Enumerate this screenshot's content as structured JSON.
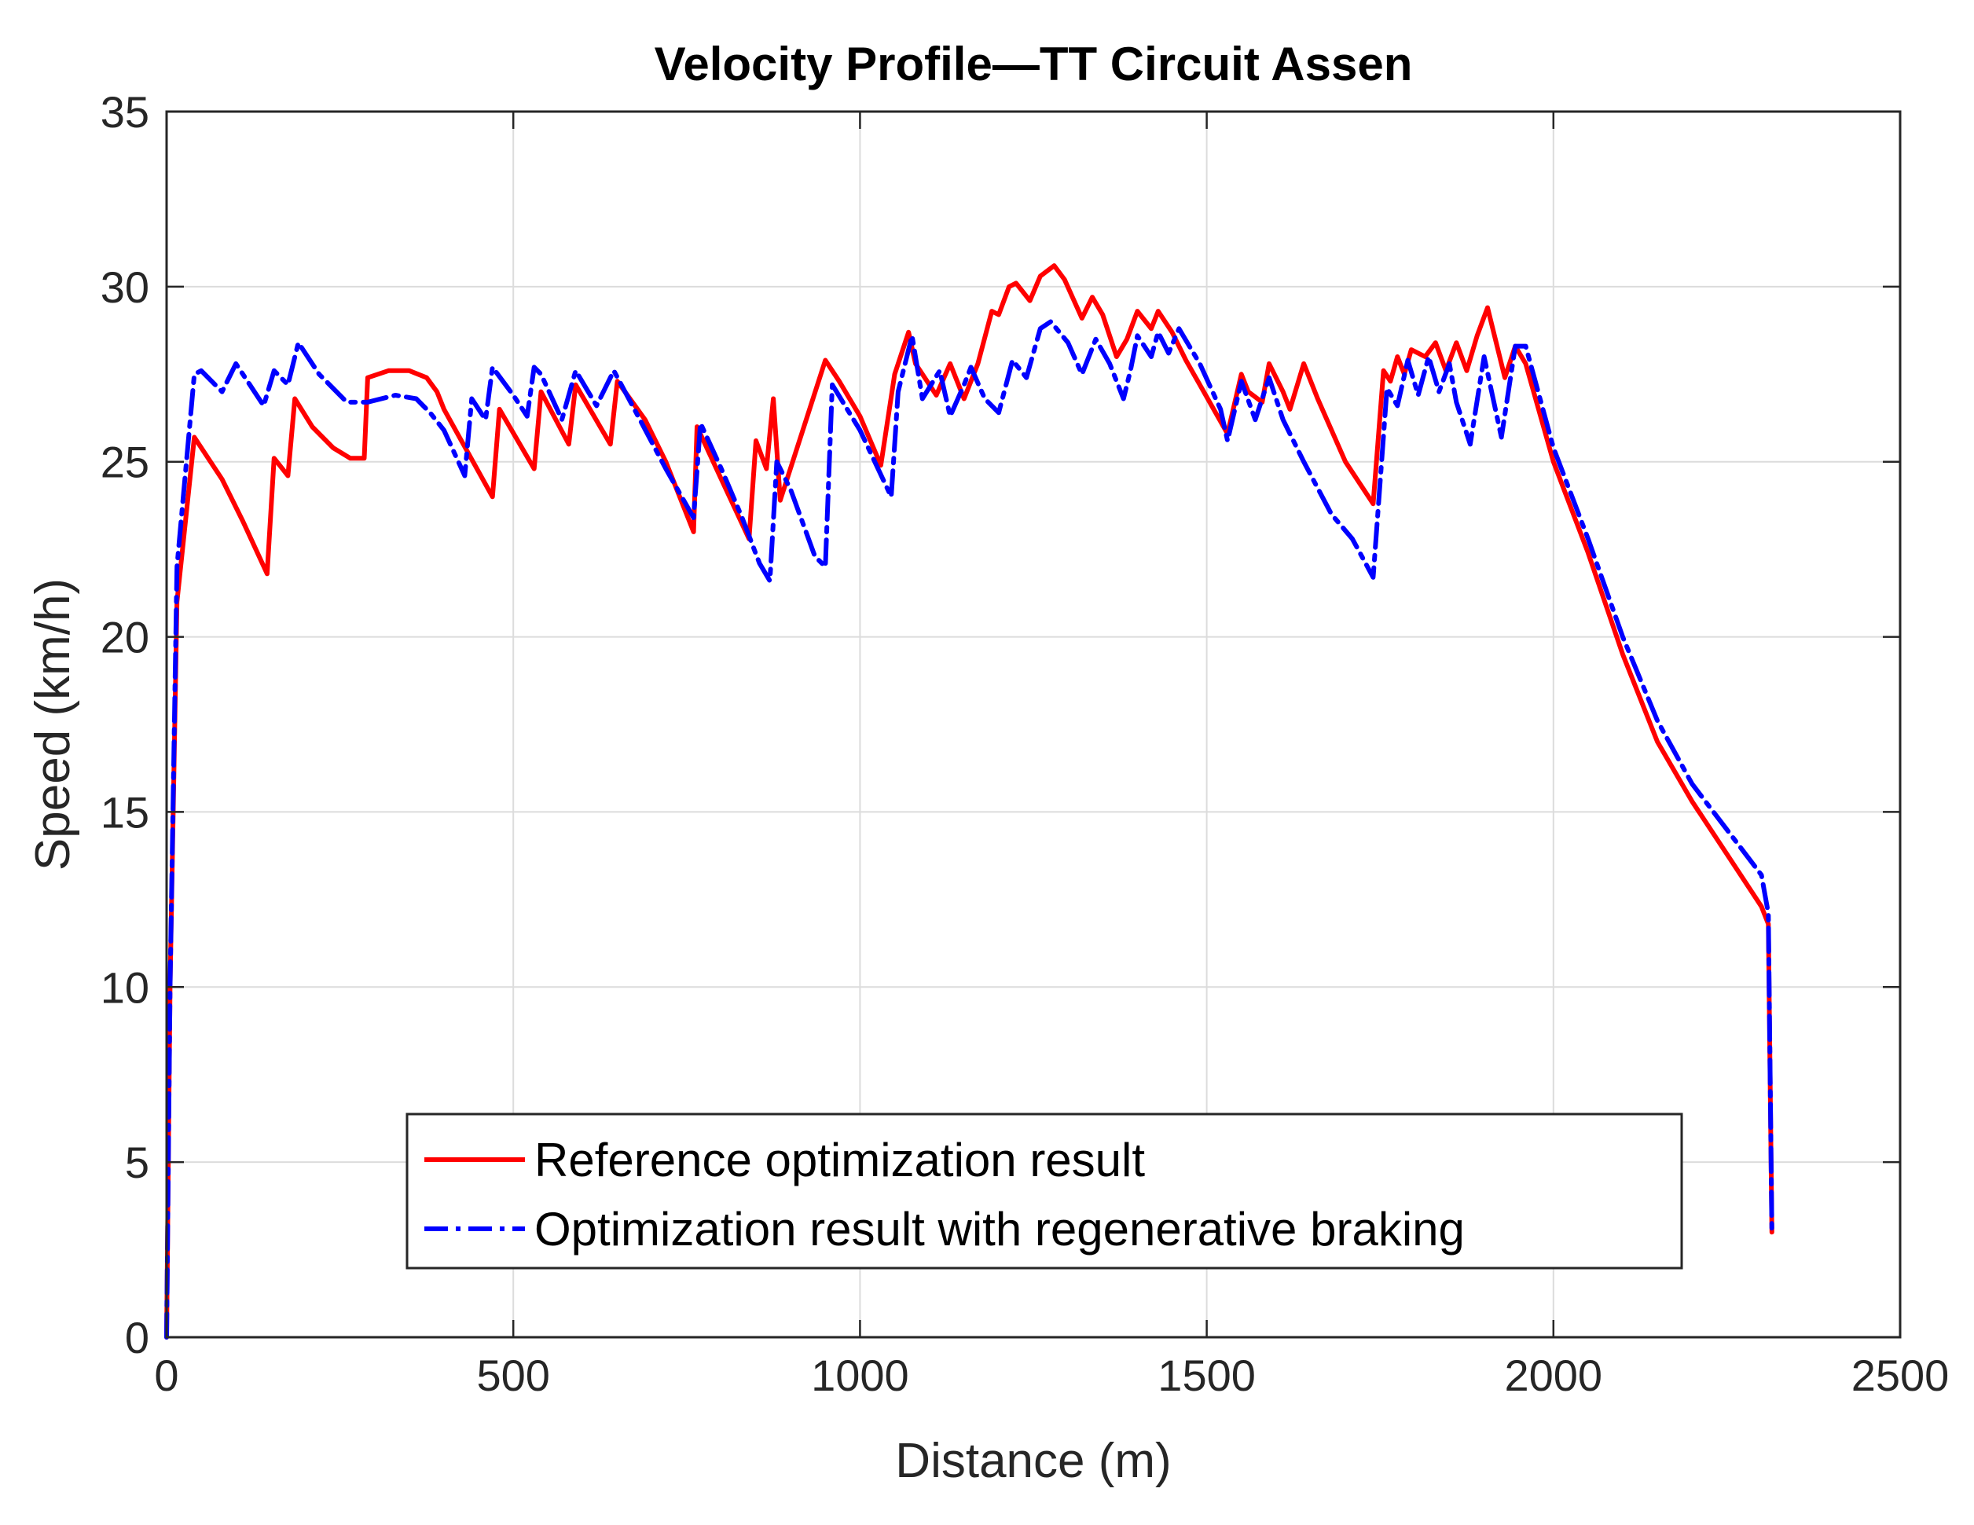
{
  "chart_data": {
    "type": "line",
    "title": "Velocity Profile—TT Circuit Assen",
    "xlabel": "Distance (m)",
    "ylabel": "Speed (km/h)",
    "xlim": [
      0,
      2500
    ],
    "ylim": [
      0,
      35
    ],
    "xticks": [
      0,
      500,
      1000,
      1500,
      2000,
      2500
    ],
    "yticks": [
      0,
      5,
      10,
      15,
      20,
      25,
      30,
      35
    ],
    "grid": true,
    "legend_position": "bottom-center",
    "series": [
      {
        "name": "Reference optimization result",
        "color": "#ff0000",
        "style": "solid",
        "x": [
          0,
          5,
          15,
          40,
          80,
          110,
          145,
          155,
          175,
          185,
          210,
          240,
          265,
          285,
          290,
          320,
          350,
          375,
          390,
          400,
          470,
          480,
          530,
          540,
          580,
          590,
          640,
          650,
          690,
          720,
          760,
          765,
          800,
          840,
          850,
          865,
          875,
          885,
          950,
          970,
          1000,
          1030,
          1050,
          1070,
          1080,
          1110,
          1130,
          1150,
          1170,
          1190,
          1200,
          1215,
          1225,
          1245,
          1260,
          1280,
          1295,
          1320,
          1335,
          1350,
          1370,
          1385,
          1400,
          1420,
          1430,
          1450,
          1470,
          1490,
          1530,
          1550,
          1560,
          1580,
          1590,
          1610,
          1620,
          1640,
          1660,
          1700,
          1740,
          1755,
          1765,
          1775,
          1785,
          1795,
          1815,
          1830,
          1845,
          1860,
          1875,
          1890,
          1905,
          1930,
          1945,
          1960,
          2000,
          2050,
          2100,
          2150,
          2200,
          2250,
          2300,
          2310,
          2315
        ],
        "y": [
          0,
          10,
          21,
          25.7,
          24.5,
          23.3,
          21.8,
          25.1,
          24.6,
          26.8,
          26.0,
          25.4,
          25.1,
          25.1,
          27.4,
          27.6,
          27.6,
          27.4,
          27.0,
          26.5,
          24.0,
          26.5,
          24.8,
          27.0,
          25.5,
          27.2,
          25.5,
          27.3,
          26.2,
          25.0,
          23.0,
          26.0,
          24.5,
          22.8,
          25.6,
          24.8,
          26.8,
          23.9,
          27.9,
          27.3,
          26.3,
          24.9,
          27.5,
          28.7,
          27.8,
          26.9,
          27.8,
          26.8,
          27.8,
          29.3,
          29.2,
          30.0,
          30.1,
          29.6,
          30.3,
          30.6,
          30.2,
          29.1,
          29.7,
          29.2,
          28.0,
          28.5,
          29.3,
          28.8,
          29.3,
          28.7,
          27.9,
          27.2,
          25.8,
          27.5,
          27.0,
          26.7,
          27.8,
          27.0,
          26.5,
          27.8,
          26.8,
          25.0,
          23.8,
          27.6,
          27.3,
          28.0,
          27.5,
          28.2,
          28.0,
          28.4,
          27.6,
          28.4,
          27.6,
          28.6,
          29.4,
          27.4,
          28.3,
          27.8,
          25.0,
          22.4,
          19.5,
          17.0,
          15.3,
          13.8,
          12.3,
          11.8,
          3.0
        ]
      },
      {
        "name": "Optimization result with regenerative braking",
        "color": "#0000ff",
        "style": "dashdot",
        "x": [
          0,
          5,
          15,
          40,
          50,
          80,
          100,
          120,
          140,
          155,
          175,
          190,
          220,
          260,
          290,
          330,
          360,
          380,
          400,
          430,
          440,
          460,
          470,
          500,
          520,
          530,
          540,
          570,
          590,
          620,
          645,
          680,
          720,
          760,
          770,
          800,
          830,
          855,
          870,
          880,
          900,
          935,
          950,
          960,
          1000,
          1045,
          1055,
          1075,
          1090,
          1115,
          1130,
          1150,
          1160,
          1180,
          1200,
          1220,
          1240,
          1260,
          1275,
          1300,
          1320,
          1340,
          1360,
          1380,
          1390,
          1400,
          1420,
          1430,
          1445,
          1460,
          1490,
          1520,
          1530,
          1550,
          1570,
          1590,
          1610,
          1640,
          1680,
          1710,
          1740,
          1760,
          1775,
          1790,
          1805,
          1820,
          1835,
          1850,
          1860,
          1880,
          1900,
          1925,
          1945,
          1960,
          2000,
          2050,
          2100,
          2150,
          2200,
          2250,
          2300,
          2310,
          2315
        ],
        "y": [
          0,
          10,
          22,
          27.5,
          27.6,
          27.0,
          27.8,
          27.2,
          26.6,
          27.6,
          27.2,
          28.4,
          27.5,
          26.7,
          26.7,
          26.9,
          26.8,
          26.4,
          25.9,
          24.6,
          26.8,
          26.2,
          27.7,
          26.9,
          26.3,
          27.7,
          27.5,
          26.2,
          27.6,
          26.6,
          27.6,
          26.3,
          24.8,
          23.4,
          26.1,
          24.8,
          23.4,
          22.1,
          21.6,
          25.0,
          24.2,
          22.3,
          22.0,
          27.2,
          25.9,
          24.0,
          27.0,
          28.6,
          26.8,
          27.6,
          26.3,
          27.2,
          27.7,
          26.8,
          26.4,
          27.9,
          27.4,
          28.8,
          29.0,
          28.4,
          27.5,
          28.5,
          27.8,
          26.8,
          27.6,
          28.6,
          28.0,
          28.7,
          28.1,
          28.8,
          27.8,
          26.5,
          25.6,
          27.3,
          26.2,
          27.4,
          26.2,
          25.0,
          23.5,
          22.8,
          21.7,
          27.1,
          26.6,
          27.9,
          26.9,
          28.0,
          27.0,
          27.8,
          26.7,
          25.5,
          28.0,
          25.7,
          28.3,
          28.3,
          25.4,
          22.8,
          20.0,
          17.6,
          15.8,
          14.5,
          13.2,
          12.1,
          3.0
        ]
      }
    ]
  }
}
